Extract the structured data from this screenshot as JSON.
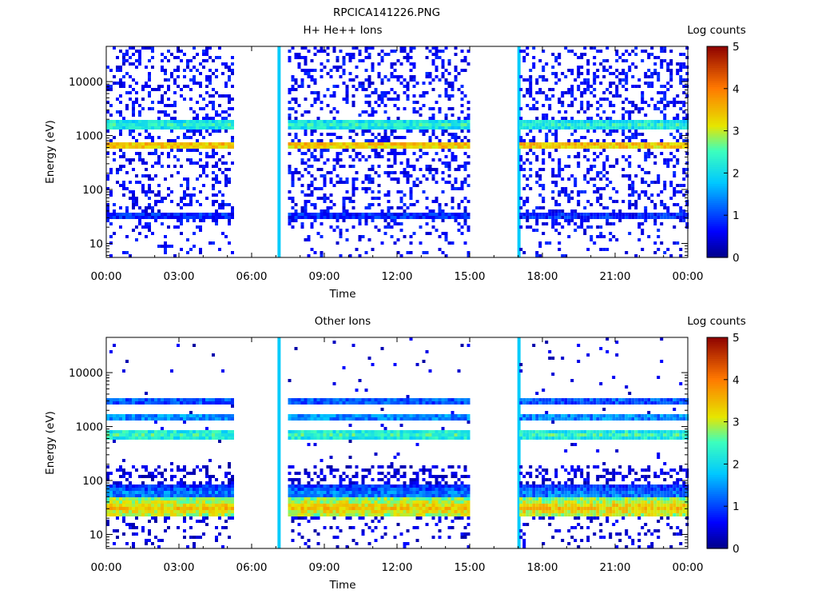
{
  "figure_title": "RPCICA141226.PNG",
  "chart_data": [
    {
      "type": "heatmap",
      "title": "H+ He++ Ions",
      "xlabel": "Time",
      "ylabel": "Energy (eV)",
      "x_ticks": [
        "00:00",
        "03:00",
        "06:00",
        "09:00",
        "12:00",
        "15:00",
        "18:00",
        "21:00",
        "00:00"
      ],
      "x_range_hours": [
        0,
        24
      ],
      "y_scale": "log",
      "y_range": [
        5.5,
        45000
      ],
      "y_ticks": [
        {
          "value": 10,
          "label": "10"
        },
        {
          "value": 100,
          "label": "100"
        },
        {
          "value": 1000,
          "label": "1000"
        },
        {
          "value": 10000,
          "label": "10000"
        }
      ],
      "colorbar": {
        "label": "Log counts",
        "min": 0,
        "max": 5,
        "ticks": [
          "0",
          "1",
          "2",
          "3",
          "4",
          "5"
        ]
      },
      "data_intervals_hours": [
        [
          0.0,
          5.2
        ],
        [
          7.1,
          7.15
        ],
        [
          7.5,
          14.9
        ],
        [
          17.0,
          17.05
        ],
        [
          17.05,
          24.0
        ]
      ],
      "bands": [
        {
          "energy_eV": 1700,
          "log_counts": 2.3
        },
        {
          "energy_eV": 720,
          "log_counts": 3.5
        },
        {
          "energy_eV": 35,
          "log_counts": 0.9
        }
      ],
      "background_log_counts": 0.3
    },
    {
      "type": "heatmap",
      "title": "Other Ions",
      "xlabel": "Time",
      "ylabel": "Energy (eV)",
      "x_ticks": [
        "00:00",
        "03:00",
        "06:00",
        "09:00",
        "12:00",
        "15:00",
        "18:00",
        "21:00",
        "00:00"
      ],
      "x_range_hours": [
        0,
        24
      ],
      "y_scale": "log",
      "y_range": [
        5.5,
        45000
      ],
      "y_ticks": [
        {
          "value": 10,
          "label": "10"
        },
        {
          "value": 100,
          "label": "100"
        },
        {
          "value": 1000,
          "label": "1000"
        },
        {
          "value": 10000,
          "label": "10000"
        }
      ],
      "colorbar": {
        "label": "Log counts",
        "min": 0,
        "max": 5,
        "ticks": [
          "0",
          "1",
          "2",
          "3",
          "4",
          "5"
        ]
      },
      "data_intervals_hours": [
        [
          0.0,
          5.2
        ],
        [
          7.1,
          7.15
        ],
        [
          7.5,
          14.9
        ],
        [
          17.0,
          17.05
        ],
        [
          17.05,
          24.0
        ]
      ],
      "bands": [
        {
          "energy_eV": 3200,
          "log_counts": 1.2
        },
        {
          "energy_eV": 1600,
          "log_counts": 1.5
        },
        {
          "energy_eV": 750,
          "log_counts": 2.4
        },
        {
          "energy_eV": 60,
          "log_counts": 1.4
        },
        {
          "energy_eV": 33,
          "log_counts": 3.4
        }
      ],
      "background_log_counts": 0.1
    }
  ]
}
